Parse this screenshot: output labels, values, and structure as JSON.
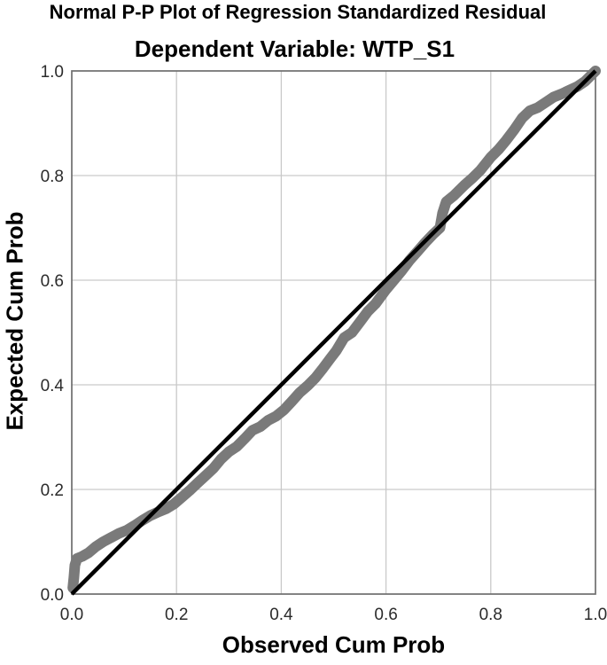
{
  "chart_data": {
    "type": "scatter",
    "title": "Normal P-P Plot of Regression Standardized Residual",
    "subtitle": "Dependent Variable: WTP_S1",
    "xlabel": "Observed Cum Prob",
    "ylabel": "Expected Cum Prob",
    "xlim": [
      0.0,
      1.0
    ],
    "ylim": [
      0.0,
      1.0
    ],
    "grid": true,
    "legend": "none",
    "x_ticks": {
      "values": [
        0.0,
        0.2,
        0.4,
        0.6,
        0.8,
        1.0
      ],
      "labels": [
        "0.0",
        "0.2",
        "0.4",
        "0.6",
        "0.8",
        "1.0"
      ]
    },
    "y_ticks": {
      "values": [
        0.0,
        0.2,
        0.4,
        0.6,
        0.8,
        1.0
      ],
      "labels": [
        "0.0",
        "0.2",
        "0.4",
        "0.6",
        "0.8",
        "1.0"
      ]
    },
    "reference_line": {
      "name": "normal-diagonal",
      "from": [
        0.0,
        0.0
      ],
      "to": [
        1.0,
        1.0
      ],
      "color": "#000000",
      "width": 4.5
    },
    "series": [
      {
        "name": "Regression standardized residual P-P points",
        "color": "#7a7a7a",
        "band_width": 12,
        "points": [
          [
            0.002,
            0.012
          ],
          [
            0.004,
            0.032
          ],
          [
            0.006,
            0.055
          ],
          [
            0.01,
            0.068
          ],
          [
            0.02,
            0.072
          ],
          [
            0.032,
            0.079
          ],
          [
            0.045,
            0.09
          ],
          [
            0.06,
            0.1
          ],
          [
            0.075,
            0.108
          ],
          [
            0.09,
            0.116
          ],
          [
            0.105,
            0.122
          ],
          [
            0.12,
            0.131
          ],
          [
            0.135,
            0.141
          ],
          [
            0.15,
            0.15
          ],
          [
            0.165,
            0.157
          ],
          [
            0.18,
            0.163
          ],
          [
            0.195,
            0.172
          ],
          [
            0.21,
            0.185
          ],
          [
            0.225,
            0.198
          ],
          [
            0.24,
            0.212
          ],
          [
            0.255,
            0.226
          ],
          [
            0.27,
            0.24
          ],
          [
            0.285,
            0.258
          ],
          [
            0.3,
            0.272
          ],
          [
            0.315,
            0.282
          ],
          [
            0.33,
            0.297
          ],
          [
            0.345,
            0.313
          ],
          [
            0.36,
            0.32
          ],
          [
            0.375,
            0.332
          ],
          [
            0.39,
            0.34
          ],
          [
            0.405,
            0.352
          ],
          [
            0.42,
            0.368
          ],
          [
            0.435,
            0.385
          ],
          [
            0.45,
            0.398
          ],
          [
            0.465,
            0.413
          ],
          [
            0.48,
            0.432
          ],
          [
            0.495,
            0.452
          ],
          [
            0.505,
            0.465
          ],
          [
            0.52,
            0.49
          ],
          [
            0.535,
            0.5
          ],
          [
            0.55,
            0.52
          ],
          [
            0.565,
            0.54
          ],
          [
            0.58,
            0.555
          ],
          [
            0.6,
            0.582
          ],
          [
            0.615,
            0.6
          ],
          [
            0.63,
            0.618
          ],
          [
            0.645,
            0.638
          ],
          [
            0.66,
            0.655
          ],
          [
            0.675,
            0.672
          ],
          [
            0.69,
            0.688
          ],
          [
            0.703,
            0.7
          ],
          [
            0.708,
            0.728
          ],
          [
            0.715,
            0.75
          ],
          [
            0.73,
            0.762
          ],
          [
            0.75,
            0.782
          ],
          [
            0.765,
            0.795
          ],
          [
            0.78,
            0.81
          ],
          [
            0.8,
            0.835
          ],
          [
            0.815,
            0.85
          ],
          [
            0.83,
            0.868
          ],
          [
            0.845,
            0.888
          ],
          [
            0.86,
            0.91
          ],
          [
            0.875,
            0.924
          ],
          [
            0.89,
            0.93
          ],
          [
            0.905,
            0.94
          ],
          [
            0.92,
            0.95
          ],
          [
            0.935,
            0.956
          ],
          [
            0.95,
            0.963
          ],
          [
            0.965,
            0.97
          ],
          [
            0.98,
            0.98
          ],
          [
            1.0,
            1.0
          ]
        ]
      }
    ],
    "colors": {
      "background": "#ffffff",
      "grid": "#c9c9c9",
      "frame": "#6e6e6e",
      "tick_text": "#2b2b2b",
      "title_text": "#000000"
    }
  }
}
